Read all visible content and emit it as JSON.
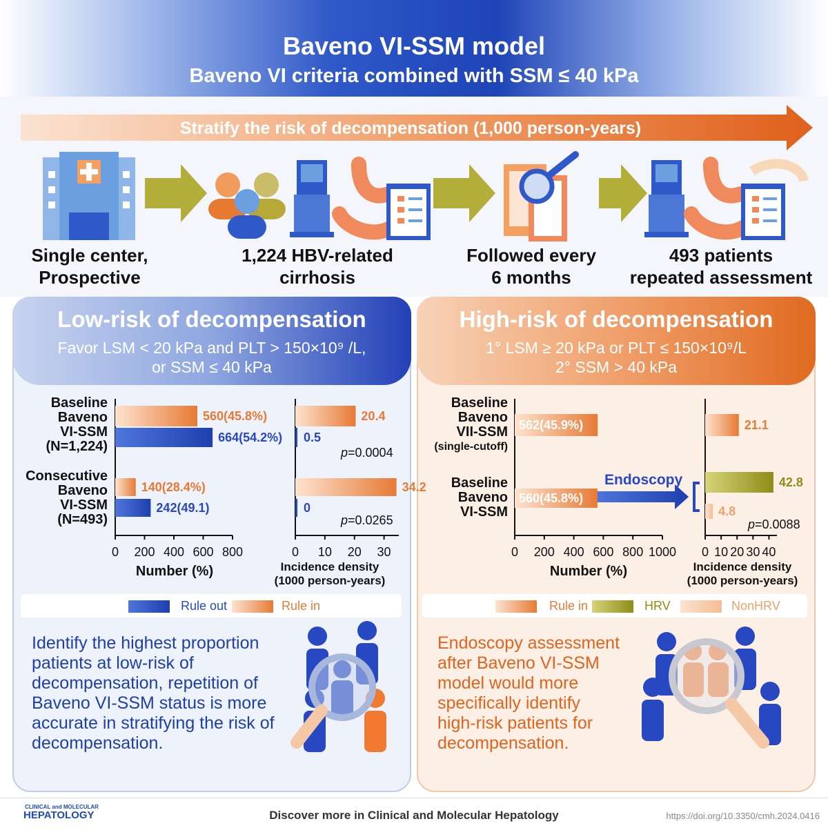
{
  "header": {
    "title": "Baveno VI-SSM model",
    "subtitle": "Baveno VI criteria combined with SSM ≤ 40 kPa"
  },
  "stratify_label": "Stratify the risk of decompensation (1,000 person-years)",
  "steps": [
    {
      "line1": "Single center,",
      "line2": "Prospective"
    },
    {
      "line1": "1,224 HBV-related",
      "line2": "cirrhosis"
    },
    {
      "line1": "Followed every",
      "line2": "6 months"
    },
    {
      "line1": "493 patients",
      "line2": "repeated assessment"
    }
  ],
  "left_panel": {
    "title": "Low-risk of decompensation",
    "sub1": "Favor LSM < 20 kPa and PLT > 150×10⁹ /L,",
    "sub2": "or SSM ≤ 40 kPa",
    "row1": [
      "Baseline",
      "Baveno",
      "VI-SSM",
      "(N=1,224)"
    ],
    "row2": [
      "Consecutive",
      "Baveno",
      "VI-SSM",
      "(N=493)"
    ],
    "p1": "=0.0004",
    "p2": "=0.0265",
    "p_letter": "p",
    "axis1_title": "Number (%)",
    "axis2_title1": "Incidence density",
    "axis2_title2": "(1000 person-years)",
    "legend": {
      "rule_out": "Rule out",
      "rule_in": "Rule in"
    },
    "bottom_text": [
      "Identify the highest proportion",
      "patients at low-risk of",
      "decompensation, repetition of",
      "Baveno VI-SSM status is more",
      "accurate in stratifying the risk of",
      "decompensation."
    ]
  },
  "right_panel": {
    "title": "High-risk of decompensation",
    "sub1": "1° LSM ≥ 20 kPa or PLT ≤ 150×10⁹/L",
    "sub2": "2° SSM > 40 kPa",
    "row1": [
      "Baseline",
      "Baveno",
      "VII-SSM",
      "(single-cutoff)"
    ],
    "row2": [
      "Baseline",
      "Baveno",
      "VI-SSM"
    ],
    "endoscopy": "Endoscopy",
    "p1": "=0.0088",
    "p_letter": "p",
    "axis1_title": "Number (%)",
    "axis2_title1": "Incidence density",
    "axis2_title2": "(1000 person-years)",
    "legend": {
      "rule_in": "Rule in",
      "hrv": "HRV",
      "nonhrv": "NonHRV"
    },
    "bottom_text": [
      "Endoscopy assessment",
      "after Baveno VI-SSM",
      "model would more",
      "specifically identify",
      "high-risk patients for",
      "decompensation."
    ]
  },
  "footer": {
    "logo_small": "CLINICAL and MOLECULAR",
    "logo_big": "HEPATOLOGY",
    "text": "Discover more in Clinical and Molecular Hepatology",
    "doi": "https://doi.org/10.3350/cmh.2024.0416"
  },
  "colors": {
    "blue": "#2748c0",
    "orange": "#e77a35",
    "olive": "#9b9a1f",
    "nonhrv": "#f7cda9"
  },
  "chart_data": [
    {
      "type": "bar",
      "title": "",
      "xlabel": "Number (%)",
      "xlim": [
        0,
        800
      ],
      "xticks": [
        0,
        200,
        400,
        600,
        800
      ],
      "categories": [
        "Baseline Baveno VI-SSM (N=1,224)",
        "Consecutive Baveno VI-SSM (N=493)"
      ],
      "series": [
        {
          "name": "Rule in",
          "values": [
            560,
            140
          ],
          "labels": [
            "560(45.8%)",
            "140(28.4%)"
          ]
        },
        {
          "name": "Rule out",
          "values": [
            664,
            242
          ],
          "labels": [
            "664(54.2%)",
            "242(49.1)"
          ]
        }
      ]
    },
    {
      "type": "bar",
      "xlabel": "Incidence density (1000 person-years)",
      "xlim": [
        0,
        35
      ],
      "xticks": [
        0,
        10,
        20,
        30
      ],
      "categories": [
        "Baseline Baveno VI-SSM (N=1,224)",
        "Consecutive Baveno VI-SSM (N=493)"
      ],
      "series": [
        {
          "name": "Rule in",
          "values": [
            20.4,
            34.2
          ],
          "labels": [
            "20.4",
            "34.2"
          ]
        },
        {
          "name": "Rule out",
          "values": [
            0.5,
            0
          ],
          "labels": [
            "0.5",
            "0"
          ]
        }
      ]
    },
    {
      "type": "bar",
      "xlabel": "Number (%)",
      "xlim": [
        0,
        1000
      ],
      "xticks": [
        0,
        200,
        400,
        600,
        800,
        1000
      ],
      "categories": [
        "Baseline Baveno VII-SSM (single-cutoff)",
        "Baseline Baveno VI-SSM"
      ],
      "series": [
        {
          "name": "Rule in",
          "values": [
            562,
            560
          ],
          "labels": [
            "562(45.9%)",
            "560(45.8%)"
          ]
        }
      ]
    },
    {
      "type": "bar",
      "xlabel": "Incidence density (1000 person-years)",
      "xlim": [
        0,
        45
      ],
      "xticks": [
        0,
        10,
        20,
        30,
        40
      ],
      "categories": [
        "Baseline Baveno VII-SSM (single-cutoff)",
        "Baseline Baveno VI-SSM"
      ],
      "series": [
        {
          "name": "Rule in",
          "values": [
            21.1,
            null
          ],
          "labels": [
            "21.1",
            ""
          ]
        },
        {
          "name": "HRV",
          "values": [
            null,
            42.8
          ],
          "labels": [
            "",
            "42.8"
          ]
        },
        {
          "name": "NonHRV",
          "values": [
            null,
            4.8
          ],
          "labels": [
            "",
            "4.8"
          ]
        }
      ]
    }
  ]
}
